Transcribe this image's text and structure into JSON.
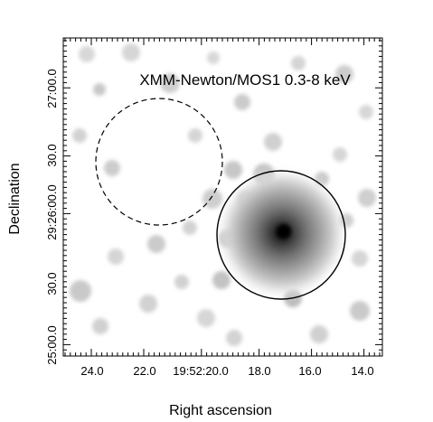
{
  "plot": {
    "title": "XMM-Newton/MOS1 0.3-8 keV",
    "xlabel": "Right ascension",
    "ylabel": "Declination",
    "x_ticks": [
      "24.0",
      "22.0",
      "19:52:20.0",
      "18.0",
      "16.0",
      "14.0"
    ],
    "y_ticks": [
      "25:00.0",
      "30.0",
      "29:26:00.0",
      "30.0",
      "27:00.0"
    ]
  },
  "regions": {
    "background": {
      "style": "dashed"
    },
    "source": {
      "style": "solid"
    }
  },
  "image": {
    "colormap": "grayscale",
    "background_color": "#ffffff",
    "source_color": "#111111"
  }
}
